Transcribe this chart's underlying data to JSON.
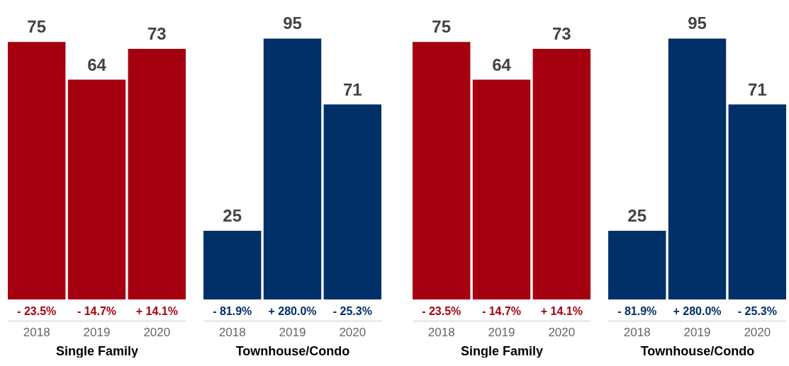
{
  "chart_data": [
    {
      "type": "bar",
      "xlabel": "Single Family",
      "categories": [
        "2018",
        "2019",
        "2020"
      ],
      "values": [
        75,
        64,
        73
      ],
      "color": "#a50010",
      "data_labels": true,
      "annotations": [
        "- 23.5%",
        "- 14.7%",
        "+ 14.1%"
      ]
    },
    {
      "type": "bar",
      "xlabel": "Townhouse/Condo",
      "categories": [
        "2018",
        "2019",
        "2020"
      ],
      "values": [
        25,
        95,
        71
      ],
      "color": "#003067",
      "data_labels": true,
      "annotations": [
        "- 81.9%",
        "+ 280.0%",
        "- 25.3%"
      ]
    },
    {
      "type": "bar",
      "xlabel": "Single Family",
      "categories": [
        "2018",
        "2019",
        "2020"
      ],
      "values": [
        75,
        64,
        73
      ],
      "color": "#a50010",
      "data_labels": true,
      "annotations": [
        "- 23.5%",
        "- 14.7%",
        "+ 14.1%"
      ]
    },
    {
      "type": "bar",
      "xlabel": "Townhouse/Condo",
      "categories": [
        "2018",
        "2019",
        "2020"
      ],
      "values": [
        25,
        95,
        71
      ],
      "color": "#003067",
      "data_labels": true,
      "annotations": [
        "- 81.9%",
        "+ 280.0%",
        "- 25.3%"
      ]
    }
  ]
}
